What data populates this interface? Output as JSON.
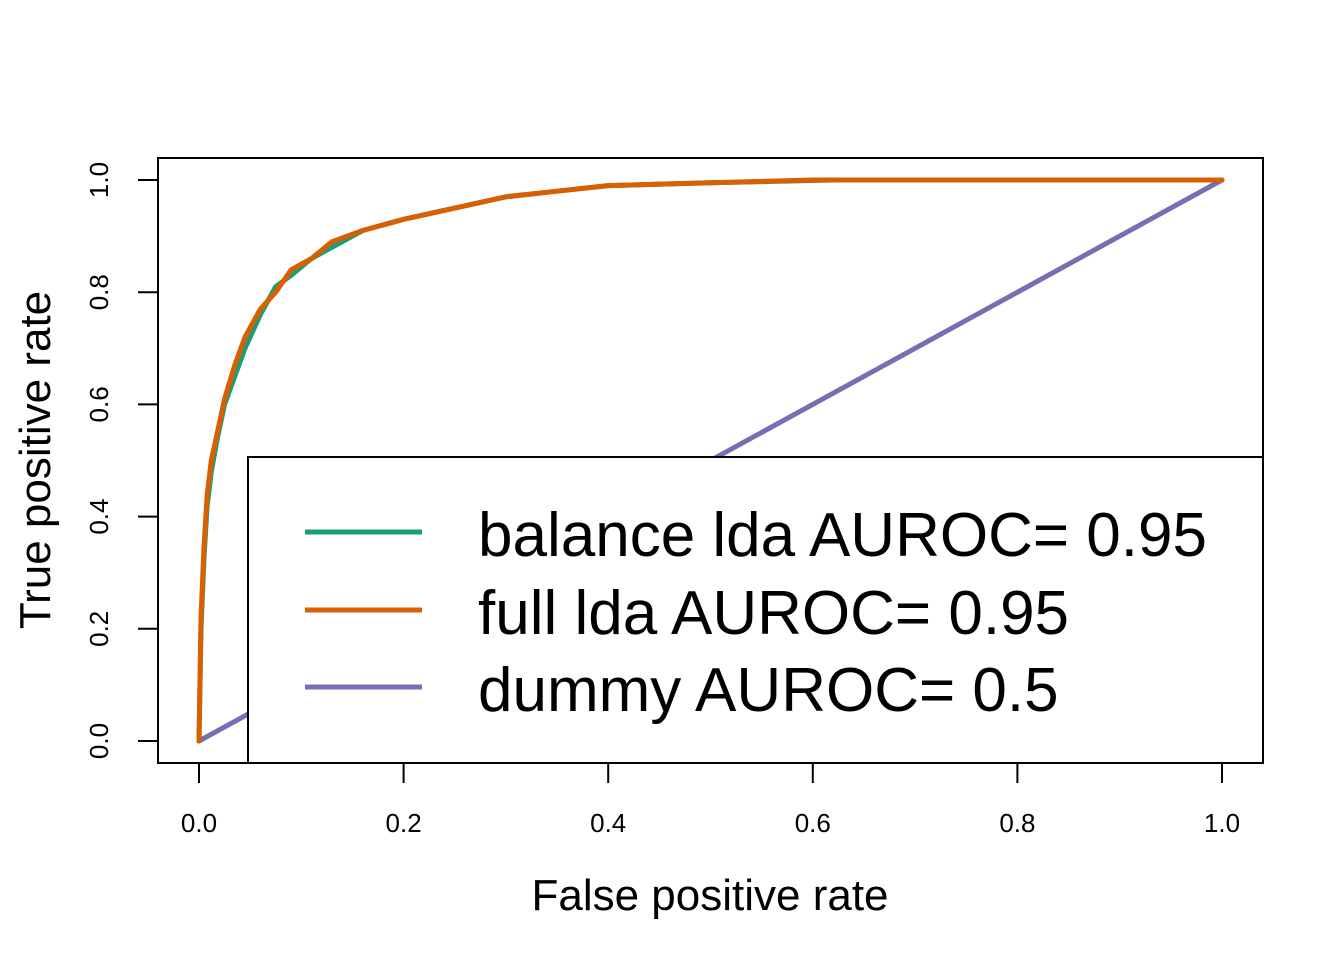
{
  "chart_data": {
    "type": "line",
    "title": "",
    "xlabel": "False positive rate",
    "ylabel": "True positive rate",
    "xlim": [
      0,
      1
    ],
    "ylim": [
      0,
      1
    ],
    "xticks": [
      "0.0",
      "0.2",
      "0.4",
      "0.6",
      "0.8",
      "1.0"
    ],
    "yticks": [
      "0.0",
      "0.2",
      "0.4",
      "0.6",
      "0.8",
      "1.0"
    ],
    "grid": false,
    "legend_position": "bottom-right",
    "series": [
      {
        "name": "balance lda AUROC= 0.95",
        "color": "#1b9e77",
        "x": [
          0,
          0.002,
          0.005,
          0.008,
          0.012,
          0.018,
          0.025,
          0.035,
          0.045,
          0.06,
          0.075,
          0.09,
          0.11,
          0.13,
          0.16,
          0.2,
          0.25,
          0.3,
          0.35,
          0.4,
          0.5,
          0.62,
          1.0
        ],
        "y": [
          0,
          0.2,
          0.33,
          0.42,
          0.48,
          0.54,
          0.6,
          0.65,
          0.7,
          0.76,
          0.81,
          0.83,
          0.86,
          0.88,
          0.91,
          0.93,
          0.95,
          0.97,
          0.98,
          0.99,
          0.995,
          1.0,
          1.0
        ]
      },
      {
        "name": "full lda AUROC= 0.95",
        "color": "#d95f02",
        "x": [
          0,
          0.002,
          0.005,
          0.008,
          0.012,
          0.018,
          0.025,
          0.035,
          0.045,
          0.06,
          0.075,
          0.09,
          0.11,
          0.13,
          0.16,
          0.2,
          0.25,
          0.3,
          0.35,
          0.4,
          0.5,
          0.6,
          1.0
        ],
        "y": [
          0,
          0.22,
          0.35,
          0.44,
          0.5,
          0.55,
          0.61,
          0.67,
          0.72,
          0.77,
          0.8,
          0.84,
          0.86,
          0.89,
          0.91,
          0.93,
          0.95,
          0.97,
          0.98,
          0.99,
          0.995,
          1.0,
          1.0
        ]
      },
      {
        "name": "dummy AUROC= 0.5",
        "color": "#7570b3",
        "x": [
          0,
          1
        ],
        "y": [
          0,
          1
        ]
      }
    ]
  }
}
